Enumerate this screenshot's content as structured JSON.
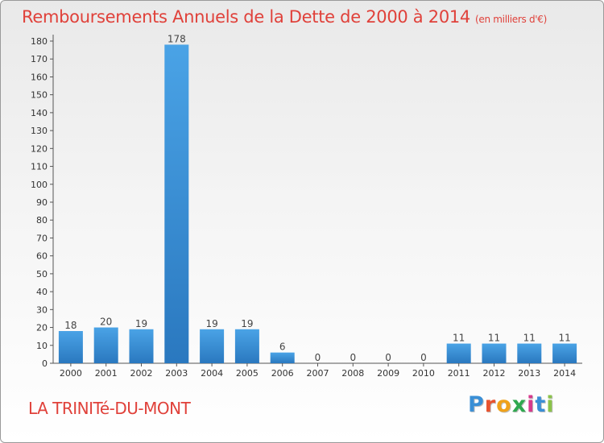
{
  "title": "Remboursements Annuels de la Dette de 2000 à 2014",
  "unit": "(en milliers d'€)",
  "commune": "LA TRINITé-DU-MONT",
  "brand": {
    "text": "Proxiti",
    "letter_colors": [
      "#3a8fd6",
      "#e8532f",
      "#f0a21a",
      "#2fa84f",
      "#d63a8c",
      "#3a8fd6",
      "#8bc34a"
    ]
  },
  "chart_data": {
    "type": "bar",
    "categories": [
      "2000",
      "2001",
      "2002",
      "2003",
      "2004",
      "2005",
      "2006",
      "2007",
      "2008",
      "2009",
      "2010",
      "2011",
      "2012",
      "2013",
      "2014"
    ],
    "values": [
      18,
      20,
      19,
      178,
      19,
      19,
      6,
      0,
      0,
      0,
      0,
      11,
      11,
      11,
      11
    ],
    "yticks": [
      0,
      10,
      20,
      30,
      40,
      50,
      60,
      70,
      80,
      90,
      100,
      110,
      120,
      130,
      140,
      150,
      160,
      170,
      180
    ],
    "ylim": [
      0,
      180
    ],
    "grid": false,
    "bar_color": "#4aa3e6",
    "bar_color_dark": "#2a78bf"
  }
}
